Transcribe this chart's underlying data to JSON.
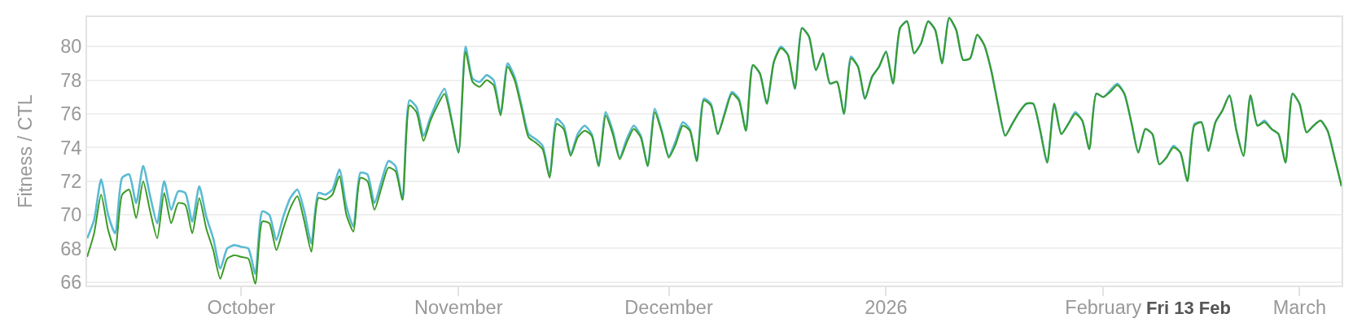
{
  "chart_data": {
    "type": "line",
    "ylabel": "Fitness / CTL",
    "x": [
      "2025-09-09",
      "2025-09-10",
      "2025-09-11",
      "2025-09-12",
      "2025-09-13",
      "2025-09-14",
      "2025-09-15",
      "2025-09-16",
      "2025-09-17",
      "2025-09-18",
      "2025-09-19",
      "2025-09-20",
      "2025-09-21",
      "2025-09-22",
      "2025-09-23",
      "2025-09-24",
      "2025-09-25",
      "2025-09-26",
      "2025-09-27",
      "2025-09-28",
      "2025-09-29",
      "2025-09-30",
      "2025-10-01",
      "2025-10-02",
      "2025-10-03",
      "2025-10-04",
      "2025-10-05",
      "2025-10-06",
      "2025-10-07",
      "2025-10-08",
      "2025-10-09",
      "2025-10-10",
      "2025-10-11",
      "2025-10-12",
      "2025-10-13",
      "2025-10-14",
      "2025-10-15",
      "2025-10-16",
      "2025-10-17",
      "2025-10-18",
      "2025-10-19",
      "2025-10-20",
      "2025-10-21",
      "2025-10-22",
      "2025-10-23",
      "2025-10-24",
      "2025-10-25",
      "2025-10-26",
      "2025-10-27",
      "2025-10-28",
      "2025-10-29",
      "2025-10-30",
      "2025-10-31",
      "2025-11-01",
      "2025-11-02",
      "2025-11-03",
      "2025-11-04",
      "2025-11-05",
      "2025-11-06",
      "2025-11-07",
      "2025-11-08",
      "2025-11-09",
      "2025-11-10",
      "2025-11-11",
      "2025-11-12",
      "2025-11-13",
      "2025-11-14",
      "2025-11-15",
      "2025-11-16",
      "2025-11-17",
      "2025-11-18",
      "2025-11-19",
      "2025-11-20",
      "2025-11-21",
      "2025-11-22",
      "2025-11-23",
      "2025-11-24",
      "2025-11-25",
      "2025-11-26",
      "2025-11-27",
      "2025-11-28",
      "2025-11-29",
      "2025-11-30",
      "2025-12-01",
      "2025-12-02",
      "2025-12-03",
      "2025-12-04",
      "2025-12-05",
      "2025-12-06",
      "2025-12-07",
      "2025-12-08",
      "2025-12-09",
      "2025-12-10",
      "2025-12-11",
      "2025-12-12",
      "2025-12-13",
      "2025-12-14",
      "2025-12-15",
      "2025-12-16",
      "2025-12-17",
      "2025-12-18",
      "2025-12-19",
      "2025-12-20",
      "2025-12-21",
      "2025-12-22",
      "2025-12-23",
      "2025-12-24",
      "2025-12-25",
      "2025-12-26",
      "2025-12-27",
      "2025-12-28",
      "2025-12-29",
      "2025-12-30",
      "2025-12-31",
      "2026-01-01",
      "2026-01-02",
      "2026-01-03",
      "2026-01-04",
      "2026-01-05",
      "2026-01-06",
      "2026-01-07",
      "2026-01-08",
      "2026-01-09",
      "2026-01-10",
      "2026-01-11",
      "2026-01-12",
      "2026-01-13",
      "2026-01-14",
      "2026-01-15",
      "2026-01-16",
      "2026-01-17",
      "2026-01-18",
      "2026-01-19",
      "2026-01-20",
      "2026-01-21",
      "2026-01-22",
      "2026-01-23",
      "2026-01-24",
      "2026-01-25",
      "2026-01-26",
      "2026-01-27",
      "2026-01-28",
      "2026-01-29",
      "2026-01-30",
      "2026-01-31",
      "2026-02-01",
      "2026-02-02",
      "2026-02-03",
      "2026-02-04",
      "2026-02-05",
      "2026-02-06",
      "2026-02-07",
      "2026-02-08",
      "2026-02-09",
      "2026-02-10",
      "2026-02-11",
      "2026-02-12",
      "2026-02-13",
      "2026-02-14",
      "2026-02-15",
      "2026-02-16",
      "2026-02-17",
      "2026-02-18",
      "2026-02-19",
      "2026-02-20",
      "2026-02-21",
      "2026-02-22",
      "2026-02-23",
      "2026-02-24",
      "2026-02-25",
      "2026-02-26",
      "2026-02-27",
      "2026-02-28",
      "2026-03-01",
      "2026-03-02",
      "2026-03-03",
      "2026-03-04",
      "2026-03-05",
      "2026-03-06",
      "2026-03-07"
    ],
    "series": [
      {
        "color": "#5bbad3",
        "values": [
          68.6,
          69.7,
          72.1,
          70.0,
          68.9,
          72.2,
          72.4,
          70.7,
          72.9,
          71.1,
          69.5,
          72.0,
          70.3,
          71.4,
          71.3,
          69.6,
          71.7,
          69.9,
          68.6,
          66.8,
          68.0,
          68.2,
          68.1,
          68.0,
          66.5,
          70.2,
          70.0,
          68.5,
          69.9,
          71.0,
          71.5,
          70.2,
          68.3,
          71.3,
          71.2,
          71.5,
          72.7,
          70.5,
          69.3,
          72.5,
          72.4,
          70.7,
          72.0,
          73.2,
          72.9,
          70.9,
          76.8,
          76.4,
          74.7,
          75.8,
          76.8,
          77.5,
          75.7,
          73.7,
          80.0,
          78.1,
          77.9,
          78.3,
          78.0,
          76.0,
          79.0,
          78.2,
          76.5,
          74.8,
          74.5,
          74.1,
          72.3,
          75.7,
          75.3,
          73.6,
          74.8,
          75.3,
          74.8,
          72.9,
          76.1,
          75.0,
          73.4,
          74.5,
          75.3,
          74.7,
          72.9,
          76.3,
          75.0,
          73.5,
          74.4,
          75.5,
          75.1,
          73.2,
          76.9,
          76.6,
          74.8,
          76.1,
          77.3,
          76.9,
          75.0,
          78.9,
          78.4,
          76.6,
          79.1,
          80.0,
          79.5,
          77.5,
          81.1,
          80.6,
          78.6,
          79.6,
          77.8,
          77.9,
          76.0,
          79.4,
          78.8,
          76.9,
          78.2,
          78.8,
          79.7,
          77.8,
          81.1,
          81.5,
          79.6,
          80.2,
          81.5,
          81.0,
          79.0,
          81.7,
          81.0,
          79.2,
          79.3,
          80.7,
          80.1,
          78.6,
          76.5,
          74.7,
          75.4,
          76.1,
          76.6,
          76.6,
          75.0,
          73.1,
          76.6,
          74.8,
          75.4,
          76.1,
          75.6,
          73.9,
          77.2,
          77.0,
          77.4,
          77.8,
          77.2,
          75.5,
          73.7,
          75.1,
          74.8,
          73.0,
          73.4,
          74.1,
          73.7,
          72.0,
          75.4,
          75.5,
          73.8,
          75.5,
          76.2,
          77.1,
          75.0,
          73.5,
          77.1,
          75.3,
          75.6,
          75.1,
          74.8,
          73.1,
          77.2,
          76.6,
          74.9,
          75.3,
          75.6,
          75.0,
          73.4,
          71.7
        ]
      },
      {
        "color": "#3a9a24",
        "values": [
          67.5,
          68.9,
          71.2,
          69.1,
          67.9,
          71.2,
          71.5,
          69.8,
          72.0,
          70.2,
          68.6,
          71.3,
          69.5,
          70.7,
          70.6,
          68.9,
          71.0,
          69.2,
          67.9,
          66.2,
          67.4,
          67.6,
          67.5,
          67.4,
          65.9,
          69.6,
          69.5,
          67.9,
          69.2,
          70.4,
          71.1,
          69.6,
          67.8,
          71.0,
          70.9,
          71.2,
          72.3,
          70.0,
          69.0,
          72.2,
          72.0,
          70.3,
          71.6,
          72.8,
          72.6,
          70.9,
          76.5,
          76.1,
          74.4,
          75.6,
          76.5,
          77.2,
          75.6,
          73.7,
          79.7,
          77.9,
          77.6,
          78.0,
          77.7,
          75.9,
          78.8,
          78.0,
          76.3,
          74.6,
          74.3,
          73.9,
          72.2,
          75.4,
          75.1,
          73.5,
          74.6,
          75.0,
          74.7,
          72.9,
          75.9,
          74.8,
          73.3,
          74.3,
          75.1,
          74.6,
          72.9,
          76.1,
          74.9,
          73.4,
          74.2,
          75.3,
          75.0,
          73.2,
          76.8,
          76.5,
          74.8,
          76.0,
          77.2,
          76.8,
          75.0,
          78.9,
          78.4,
          76.6,
          79.1,
          79.9,
          79.5,
          77.5,
          81.1,
          80.6,
          78.6,
          79.6,
          77.8,
          77.9,
          76.0,
          79.3,
          78.8,
          76.9,
          78.2,
          78.8,
          79.7,
          77.8,
          81.1,
          81.5,
          79.6,
          80.2,
          81.5,
          81.0,
          79.0,
          81.7,
          81.0,
          79.2,
          79.3,
          80.7,
          80.1,
          78.6,
          76.5,
          74.7,
          75.4,
          76.1,
          76.6,
          76.6,
          75.0,
          73.1,
          76.6,
          74.8,
          75.4,
          76.0,
          75.6,
          73.9,
          77.2,
          77.0,
          77.3,
          77.7,
          77.2,
          75.5,
          73.7,
          75.1,
          74.8,
          73.0,
          73.4,
          74.0,
          73.7,
          72.0,
          75.3,
          75.5,
          73.8,
          75.5,
          76.2,
          77.1,
          75.0,
          73.5,
          77.1,
          75.3,
          75.5,
          75.1,
          74.8,
          73.1,
          77.2,
          76.6,
          74.9,
          75.3,
          75.6,
          75.0,
          73.4,
          71.7
        ]
      }
    ],
    "xlim": [
      "2025-09-09",
      "2026-03-07"
    ],
    "xticks": [
      {
        "value": "2025-10-01",
        "label": "October"
      },
      {
        "value": "2025-11-01",
        "label": "November"
      },
      {
        "value": "2025-12-01",
        "label": "December"
      },
      {
        "value": "2026-01-01",
        "label": "2026"
      },
      {
        "value": "2026-02-01",
        "label": "February"
      },
      {
        "value": "2026-03-01",
        "label": "March"
      }
    ],
    "ylim": [
      65.8,
      81.75
    ],
    "yticks": [
      66,
      68,
      70,
      72,
      74,
      76,
      78,
      80
    ],
    "grid": "y",
    "annotations": [
      "Fri 13 Feb"
    ]
  }
}
